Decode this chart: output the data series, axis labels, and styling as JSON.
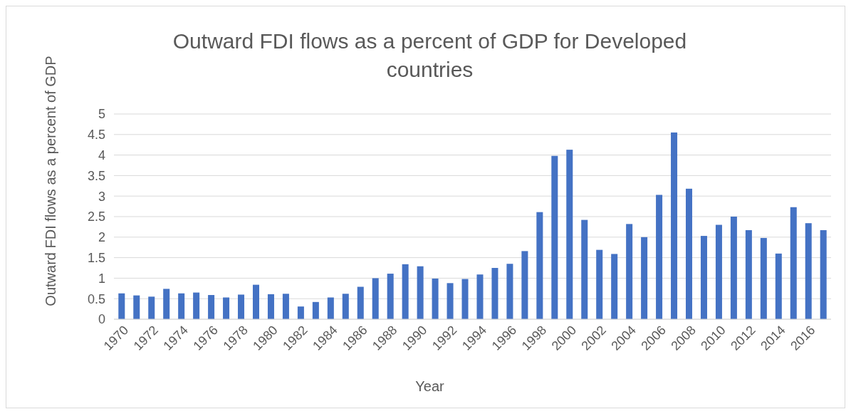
{
  "chart_data": {
    "type": "bar",
    "title": "Outward FDI flows as a percent of GDP for Developed countries",
    "xlabel": "Year",
    "ylabel": "Outward FDI flows as a percent of GDP",
    "categories": [
      "1970",
      null,
      "1972",
      null,
      "1974",
      null,
      "1976",
      null,
      "1978",
      null,
      "1980",
      null,
      "1982",
      null,
      "1984",
      null,
      "1986",
      null,
      "1988",
      null,
      "1990",
      null,
      "1992",
      null,
      "1994",
      null,
      "1996",
      null,
      "1998",
      null,
      "2000",
      null,
      "2002",
      null,
      "2004",
      null,
      "2006",
      null,
      "2008",
      null,
      "2010",
      null,
      "2012",
      null,
      "2014",
      null,
      "2016",
      null
    ],
    "values": [
      0.63,
      0.58,
      0.55,
      0.74,
      0.63,
      0.65,
      0.59,
      0.53,
      0.6,
      0.84,
      0.61,
      0.62,
      0.31,
      0.42,
      0.53,
      0.62,
      0.79,
      1.0,
      1.11,
      1.34,
      1.29,
      0.99,
      0.88,
      0.98,
      1.09,
      1.25,
      1.35,
      1.66,
      2.61,
      3.98,
      4.13,
      2.42,
      1.69,
      1.59,
      2.32,
      2.0,
      3.03,
      4.55,
      3.18,
      2.03,
      2.3,
      2.5,
      2.17,
      1.98,
      1.6,
      2.73,
      2.34,
      2.17
    ],
    "color": "#4472c4",
    "ylim": [
      0,
      5
    ],
    "yticks": [
      0,
      0.5,
      1,
      1.5,
      2,
      2.5,
      3,
      3.5,
      4,
      4.5,
      5
    ],
    "grid": "y"
  }
}
